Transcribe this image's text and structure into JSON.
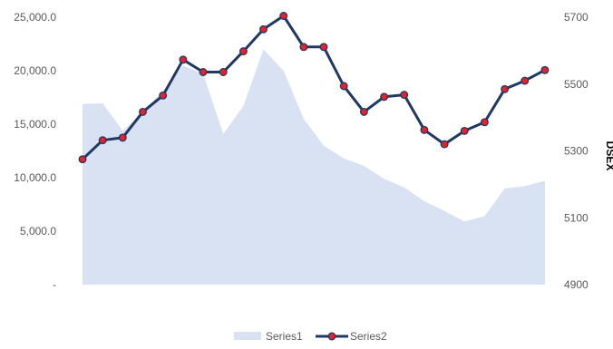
{
  "chart_data": {
    "type": "area+line",
    "x_count": 24,
    "y_left": {
      "min": 0,
      "max": 25000,
      "ticks": [
        0,
        5000,
        10000,
        15000,
        20000,
        25000
      ],
      "tick_labels": [
        "-",
        "5,000.0",
        "10,000.0",
        "15,000.0",
        "20,000.0",
        "25,000.0"
      ]
    },
    "y_right": {
      "label": "DSEX",
      "min": 4900,
      "max": 5700,
      "ticks": [
        4900,
        5100,
        5300,
        5500,
        5700
      ],
      "tick_labels": [
        "4900",
        "5100",
        "5300",
        "5500",
        "5700"
      ]
    },
    "series": [
      {
        "name": "Series1",
        "type": "area",
        "axis": "left",
        "color": "#d9e2f3",
        "values": [
          16900,
          16950,
          14400,
          16100,
          18100,
          20500,
          19700,
          14100,
          16700,
          22000,
          20000,
          15500,
          13000,
          11800,
          11100,
          9900,
          9100,
          7800,
          6900,
          5900,
          6400,
          9000,
          9200,
          9700
        ]
      },
      {
        "name": "Series2",
        "type": "line",
        "axis": "right",
        "color": "#1f3864",
        "marker_color": "#e8202a",
        "values": [
          5275,
          5332,
          5340,
          5417,
          5466,
          5573,
          5536,
          5536,
          5598,
          5664,
          5704,
          5611,
          5611,
          5494,
          5417,
          5462,
          5468,
          5363,
          5320,
          5360,
          5386,
          5485,
          5510,
          5542
        ]
      }
    ],
    "legend": {
      "position": "bottom",
      "items": [
        "Series1",
        "Series2"
      ]
    },
    "grid": false
  }
}
